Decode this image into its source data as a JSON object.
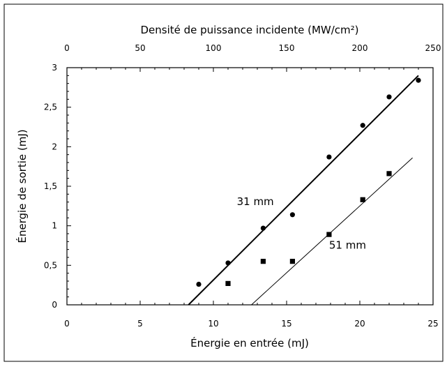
{
  "chart_data": {
    "type": "scatter",
    "title": "",
    "xlabel": "Énergie en entrée (mJ)",
    "ylabel": "Énergie de sortie (mJ)",
    "x2label": "Densité de puissance incidente (MW/cm²)",
    "xlim": [
      0,
      25
    ],
    "ylim": [
      0,
      3
    ],
    "x2lim": [
      0,
      250
    ],
    "x_ticks": [
      0,
      5,
      10,
      15,
      20,
      25
    ],
    "x_tick_labels": [
      "0",
      "5",
      "10",
      "15",
      "20",
      "25"
    ],
    "y_ticks": [
      0,
      0.5,
      1,
      1.5,
      2,
      2.5,
      3
    ],
    "y_tick_labels": [
      "0",
      "0,5",
      "1",
      "1,5",
      "2",
      "2,5",
      "3"
    ],
    "x2_ticks": [
      0,
      50,
      100,
      150,
      200,
      250
    ],
    "x2_tick_labels": [
      "0",
      "50",
      "100",
      "150",
      "200",
      "250"
    ],
    "grid": false,
    "legend": "none",
    "series": [
      {
        "name": "31 mm",
        "marker": "circle",
        "x": [
          9.0,
          11.0,
          13.4,
          15.4,
          17.9,
          20.2,
          22.0,
          24.0
        ],
        "y": [
          0.26,
          0.53,
          0.97,
          1.14,
          1.87,
          2.27,
          2.63,
          2.84
        ],
        "fit": {
          "x": [
            8.3,
            24.0
          ],
          "y": [
            0.0,
            2.9
          ]
        },
        "fit_stroke": "thick"
      },
      {
        "name": "51 mm",
        "marker": "square",
        "x": [
          11.0,
          13.4,
          15.4,
          17.9,
          20.2,
          22.0
        ],
        "y": [
          0.27,
          0.55,
          0.55,
          0.89,
          1.33,
          1.66
        ],
        "fit": {
          "x": [
            12.6,
            23.6
          ],
          "y": [
            0.0,
            1.86
          ]
        },
        "fit_stroke": "thin"
      }
    ],
    "annotations": [
      {
        "text": "31 mm",
        "x": 11.6,
        "y": 1.26
      },
      {
        "text": "51 mm",
        "x": 17.9,
        "y": 0.71
      }
    ],
    "colors": {
      "markers": "#000000",
      "lines": "#000000",
      "frame": "#000000"
    }
  }
}
